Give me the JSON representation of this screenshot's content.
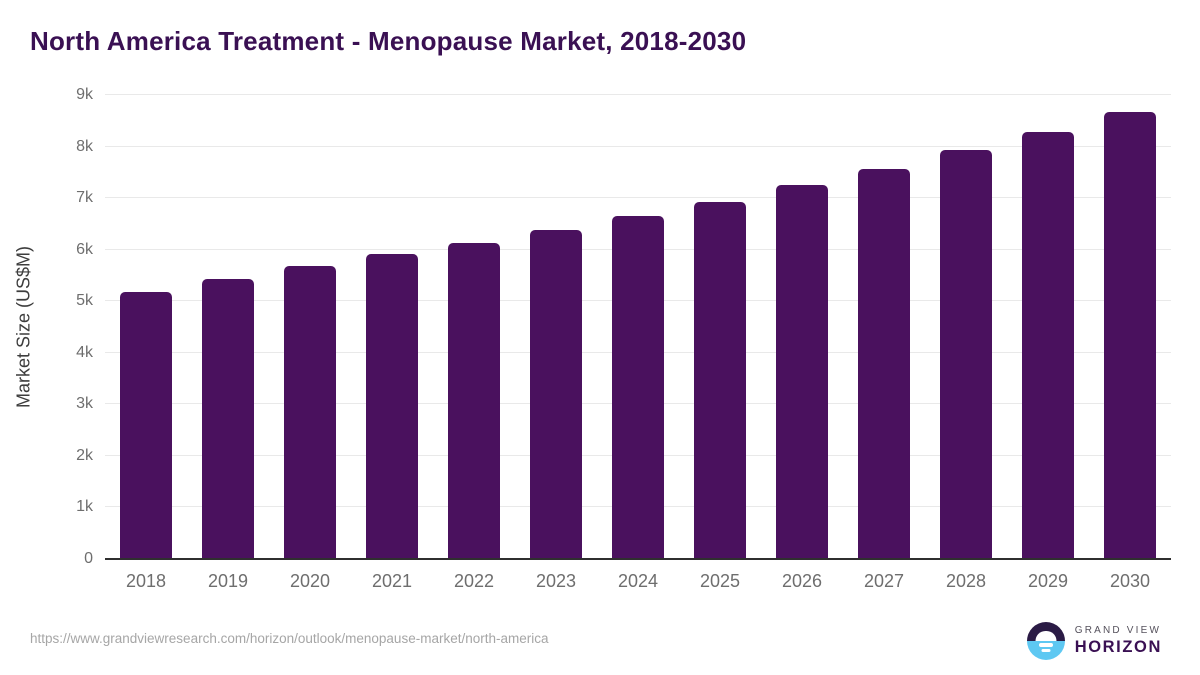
{
  "title": "North America Treatment - Menopause Market, 2018-2030",
  "chart_data": {
    "type": "bar",
    "title": "North America Treatment - Menopause Market, 2018-2030",
    "categories": [
      "2018",
      "2019",
      "2020",
      "2021",
      "2022",
      "2023",
      "2024",
      "2025",
      "2026",
      "2027",
      "2028",
      "2029",
      "2030"
    ],
    "values": [
      5170,
      5440,
      5680,
      5910,
      6130,
      6390,
      6660,
      6930,
      7250,
      7560,
      7930,
      8290,
      8680
    ],
    "xlabel": "",
    "ylabel": "Market Size (US$M)",
    "ylim": [
      0,
      9000
    ],
    "ytick_step": 1000,
    "ytick_labels": [
      "0",
      "1k",
      "2k",
      "3k",
      "4k",
      "5k",
      "6k",
      "7k",
      "8k",
      "9k"
    ],
    "grid": "horizontal-only",
    "legend": "none",
    "bar_color": "#4a115e"
  },
  "footer": {
    "source_url": "https://www.grandviewresearch.com/horizon/outlook/menopause-market/north-america",
    "logo": {
      "brand_top": "GRAND VIEW",
      "brand_bottom": "HORIZON",
      "icon": "sun-over-horizon-icon"
    }
  },
  "colors": {
    "bar": "#4a115e",
    "title_text": "#3a1053",
    "gridline": "#e9e9e9",
    "axis_line": "#2f2f2f",
    "tick_text": "#6e6e6e",
    "url_text": "#a6a6a6",
    "logo_top_half": "#2b1b45",
    "logo_bottom_half": "#5ec8f2",
    "logo_grandview_text": "#55515c"
  }
}
